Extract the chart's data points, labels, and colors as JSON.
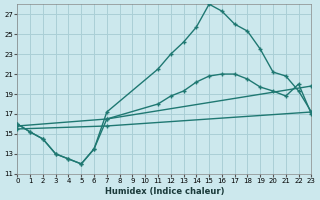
{
  "xlabel": "Humidex (Indice chaleur)",
  "bg_color": "#cce8ed",
  "grid_color": "#aacfd6",
  "line_color": "#1f7872",
  "xlim": [
    0,
    23
  ],
  "ylim": [
    11,
    28
  ],
  "yticks": [
    11,
    13,
    15,
    17,
    19,
    21,
    23,
    25,
    27
  ],
  "xticks": [
    0,
    1,
    2,
    3,
    4,
    5,
    6,
    7,
    8,
    9,
    10,
    11,
    12,
    13,
    14,
    15,
    16,
    17,
    18,
    19,
    20,
    21,
    22,
    23
  ],
  "line1_x": [
    0,
    1,
    2,
    3,
    4,
    5,
    6,
    7,
    11,
    12,
    13,
    14,
    15,
    16,
    17,
    18,
    19,
    20,
    21,
    22,
    23
  ],
  "line1_y": [
    16.0,
    15.2,
    14.5,
    13.0,
    12.5,
    12.0,
    13.5,
    17.2,
    21.5,
    23.0,
    24.2,
    25.7,
    28.0,
    27.3,
    26.0,
    25.3,
    23.5,
    21.2,
    20.8,
    19.3,
    17.2
  ],
  "line2_x": [
    0,
    1,
    2,
    3,
    4,
    5,
    6,
    7,
    11,
    12,
    13,
    14,
    15,
    16,
    17,
    18,
    19,
    20,
    21,
    22,
    23
  ],
  "line2_y": [
    16.0,
    15.2,
    14.5,
    13.0,
    12.5,
    12.0,
    13.5,
    16.5,
    18.0,
    18.8,
    19.3,
    20.2,
    20.8,
    21.0,
    21.0,
    20.5,
    19.7,
    19.3,
    18.8,
    20.0,
    17.0
  ],
  "line3_x": [
    0,
    7,
    23
  ],
  "line3_y": [
    15.8,
    16.5,
    19.8
  ],
  "line4_x": [
    0,
    7,
    23
  ],
  "line4_y": [
    15.5,
    15.8,
    17.2
  ]
}
